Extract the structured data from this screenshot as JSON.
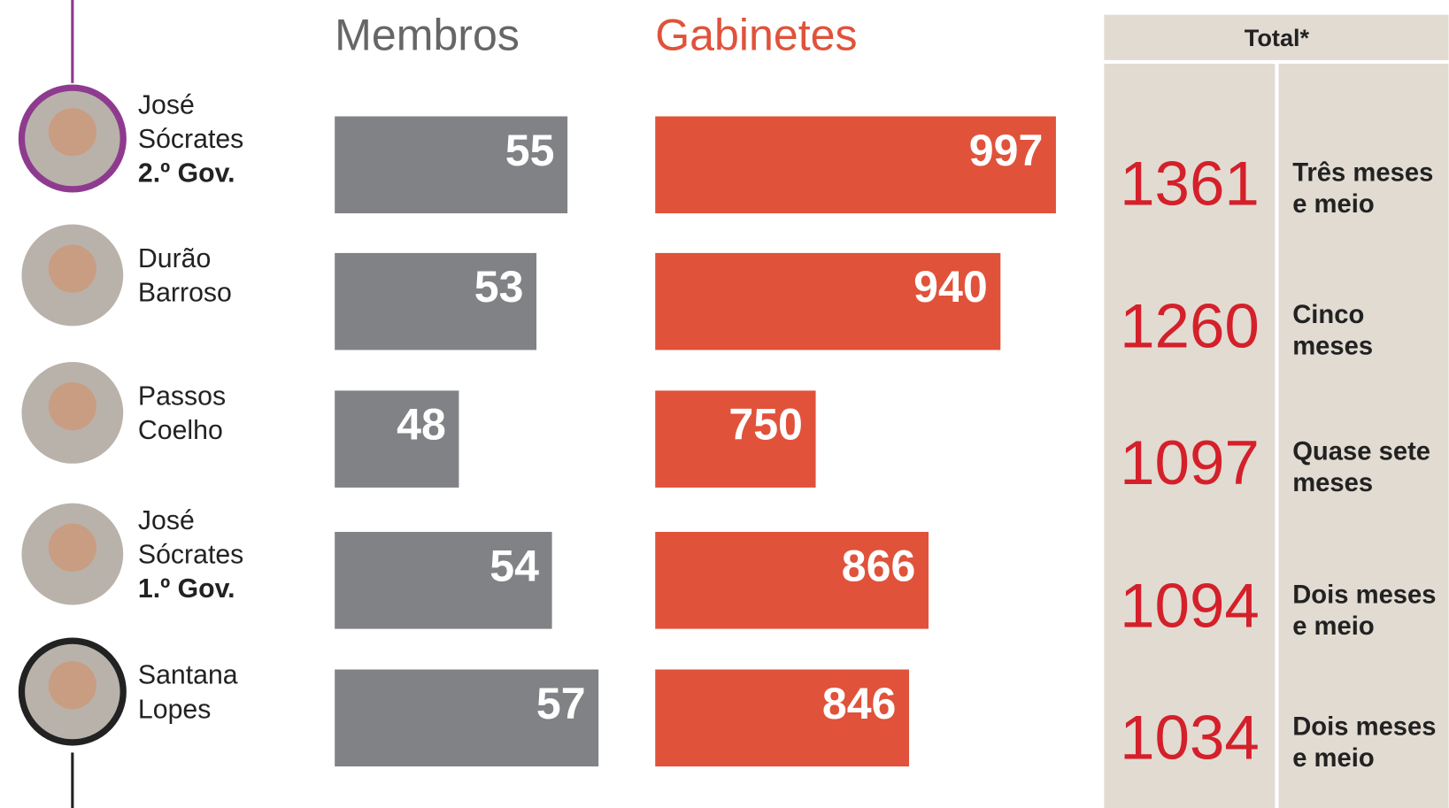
{
  "chart_data": {
    "type": "bar",
    "categories": [
      {
        "name": [
          "José",
          "Sócrates"
        ],
        "government": "2.º Gov."
      },
      {
        "name": [
          "Durão",
          "Barroso"
        ]
      },
      {
        "name": [
          "Passos",
          "Coelho"
        ]
      },
      {
        "name": [
          "José",
          "Sócrates"
        ],
        "government": "1.º Gov."
      },
      {
        "name": [
          "Santana",
          "Lopes"
        ]
      }
    ],
    "series": [
      {
        "name": "Membros",
        "color": "#808285",
        "title_color": "#666666",
        "values": [
          55,
          53,
          48,
          54,
          57
        ],
        "xlim": [
          40,
          60
        ]
      },
      {
        "name": "Gabinetes",
        "color": "#e0523a",
        "title_color": "#e0523a",
        "values": [
          997,
          940,
          750,
          866,
          846
        ],
        "xlim": [
          585,
          1000
        ]
      }
    ]
  },
  "totals": {
    "title": "Total*",
    "rows": [
      {
        "value": 1361,
        "duration": [
          "Três meses",
          "e meio"
        ]
      },
      {
        "value": 1260,
        "duration": [
          "Cinco",
          "meses"
        ]
      },
      {
        "value": 1097,
        "duration": [
          "Quase sete",
          "meses"
        ]
      },
      {
        "value": 1094,
        "duration": [
          "Dois meses",
          "e meio"
        ]
      },
      {
        "value": 1034,
        "duration": [
          "Dois meses",
          "e meio"
        ]
      }
    ]
  }
}
